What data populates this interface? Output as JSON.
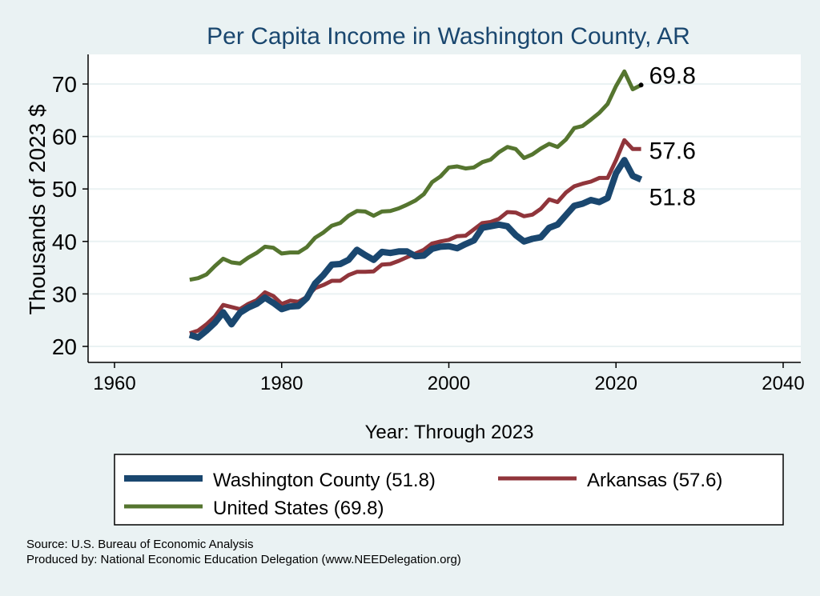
{
  "chart_data": {
    "type": "line",
    "title": "Per Capita Income in Washington County, AR",
    "xlabel": "Year: Through 2023",
    "ylabel": "Thousands of 2023 $",
    "xlim": [
      1960,
      2040
    ],
    "ylim": [
      20,
      72
    ],
    "xticks": [
      1960,
      1980,
      2000,
      2020,
      2040
    ],
    "yticks": [
      20,
      30,
      40,
      50,
      60,
      70
    ],
    "grid": true,
    "x_start": 1969,
    "series": [
      {
        "name": "Washington County (51.8)",
        "color": "#1a476f",
        "end_label": "51.8",
        "values": [
          22.2,
          21.7,
          23.0,
          24.5,
          26.5,
          24.2,
          26.4,
          27.4,
          28.1,
          29.3,
          28.3,
          27.1,
          27.6,
          27.7,
          29.2,
          32.0,
          33.6,
          35.6,
          35.7,
          36.5,
          38.4,
          37.4,
          36.5,
          38.0,
          37.8,
          38.1,
          38.1,
          37.2,
          37.3,
          38.6,
          39.0,
          39.1,
          38.7,
          39.5,
          40.2,
          42.6,
          42.9,
          43.2,
          42.9,
          41.2,
          40.0,
          40.5,
          40.8,
          42.6,
          43.2,
          45.0,
          46.8,
          47.2,
          47.9,
          47.5,
          48.3,
          53.0,
          55.5,
          52.5,
          51.8
        ]
      },
      {
        "name": "Arkansas (57.6)",
        "color": "#90353b",
        "end_label": "57.6",
        "values": [
          22.5,
          23.0,
          24.2,
          25.7,
          27.9,
          27.5,
          27.1,
          28.1,
          28.8,
          30.3,
          29.6,
          28.1,
          28.7,
          28.5,
          29.4,
          31.1,
          31.7,
          32.5,
          32.5,
          33.6,
          34.2,
          34.2,
          34.3,
          35.6,
          35.7,
          36.3,
          37.0,
          37.7,
          38.4,
          39.6,
          40.0,
          40.3,
          41.0,
          41.1,
          42.3,
          43.5,
          43.7,
          44.3,
          45.6,
          45.5,
          44.8,
          45.1,
          46.2,
          48.0,
          47.5,
          49.3,
          50.5,
          51.0,
          51.4,
          52.1,
          52.1,
          55.5,
          59.3,
          57.6,
          57.6
        ]
      },
      {
        "name": "United States (69.8)",
        "color": "#55752f",
        "end_label": "69.8",
        "values": [
          32.7,
          33.0,
          33.7,
          35.3,
          36.7,
          36.0,
          35.8,
          36.9,
          37.8,
          39.0,
          38.8,
          37.7,
          37.9,
          37.9,
          38.9,
          40.7,
          41.7,
          43.0,
          43.5,
          44.9,
          45.8,
          45.7,
          44.9,
          45.7,
          45.8,
          46.3,
          47.0,
          47.8,
          49.0,
          51.3,
          52.4,
          54.1,
          54.3,
          53.9,
          54.1,
          55.1,
          55.6,
          57.0,
          58.0,
          57.6,
          55.9,
          56.6,
          57.7,
          58.6,
          58.0,
          59.4,
          61.6,
          62.0,
          63.2,
          64.5,
          66.2,
          69.6,
          72.4,
          69.0,
          69.8
        ]
      }
    ]
  },
  "notes": {
    "source": "Source: U.S. Bureau of Economic Analysis",
    "produced": "Produced by: National Economic Education Delegation (www.NEEDelegation.org)"
  }
}
